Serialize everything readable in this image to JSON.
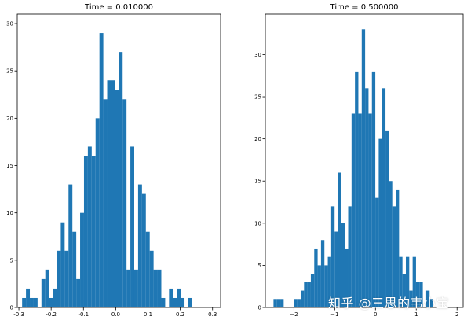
{
  "chart_data": [
    {
      "type": "bar",
      "title": "Time = 0.010000",
      "xlabel": "",
      "ylabel": "",
      "xlim": [
        -0.305,
        0.325
      ],
      "ylim": [
        0,
        31
      ],
      "xticks": [
        -0.3,
        -0.2,
        -0.1,
        0.0,
        0.1,
        0.2,
        0.3
      ],
      "xtick_labels": [
        "-0.3",
        "-0.2",
        "-0.1",
        "0.0",
        "0.1",
        "0.2",
        "0.3"
      ],
      "yticks": [
        0,
        5,
        10,
        15,
        20,
        25,
        30
      ],
      "ytick_labels": [
        "0",
        "5",
        "10",
        "15",
        "20",
        "25",
        "30"
      ],
      "bin_edges_start": -0.29,
      "bin_width": 0.01198,
      "values": [
        1,
        2,
        1,
        1,
        0,
        3,
        4,
        1,
        2,
        6,
        9,
        6,
        13,
        8,
        3,
        10,
        16,
        17,
        16,
        20,
        29,
        22,
        24,
        24,
        23,
        27,
        22,
        4,
        17,
        4,
        13,
        12,
        8,
        6,
        4,
        4,
        1,
        0,
        2,
        1,
        2,
        1,
        0,
        1
      ],
      "color": "#1f77b4",
      "grid": false
    },
    {
      "type": "bar",
      "title": "Time = 0.500000",
      "xlabel": "",
      "ylabel": "",
      "xlim": [
        -2.7,
        2.15
      ],
      "ylim": [
        0,
        34.8
      ],
      "xticks": [
        -2,
        -1,
        0,
        1,
        2
      ],
      "xtick_labels": [
        "−2",
        "−1",
        "0",
        "1",
        "2"
      ],
      "yticks": [
        0,
        5,
        10,
        15,
        20,
        25,
        30
      ],
      "ytick_labels": [
        "0",
        "5",
        "10",
        "15",
        "20",
        "25",
        "30"
      ],
      "bin_edges_start": -2.5,
      "bin_width": 0.0832,
      "values": [
        1,
        1,
        1,
        0,
        0,
        0,
        1,
        1,
        2,
        3,
        3,
        4,
        7,
        5,
        8,
        5,
        6,
        12,
        9,
        16,
        10,
        7,
        12,
        23,
        28,
        23,
        33,
        26,
        23,
        28,
        13,
        20,
        26,
        21,
        15,
        12,
        14,
        6,
        4,
        6,
        2,
        6,
        3,
        3,
        0,
        2,
        1
      ],
      "color": "#1f77b4",
      "grid": false
    }
  ],
  "watermark": "知乎 @三思的韦小宝"
}
